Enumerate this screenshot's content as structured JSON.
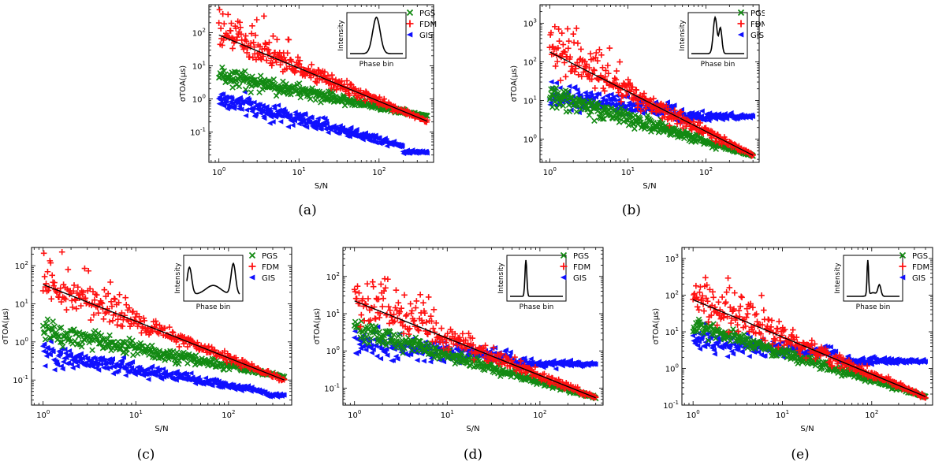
{
  "colors": {
    "PGS": "#138a13",
    "FDM": "#ff1010",
    "GIS": "#1010ff",
    "fit": "#000000"
  },
  "chart_data": [
    {
      "id": "a",
      "caption": "(a)",
      "type": "scatter",
      "xlabel": "S/N",
      "ylabel": "σTOA(μs)",
      "xlim": [
        0.75,
        480
      ],
      "ylim": [
        0.012,
        700
      ],
      "xticks": [
        1,
        10,
        100
      ],
      "yticks": [
        0.1,
        1,
        10,
        100
      ],
      "legend": [
        "PGS",
        "FDM",
        "GIS"
      ],
      "inset": {
        "xlabel": "Phase bin",
        "ylabel": "Intensity",
        "profile": "single"
      },
      "fit_line": {
        "x": [
          1,
          400
        ],
        "y": [
          85,
          0.21
        ]
      },
      "series": [
        {
          "name": "PGS",
          "marker": "x",
          "x_range": [
            1,
            400
          ],
          "y_at_xmin": 5.2,
          "y_at_xmax": 0.3,
          "slope": -0.45,
          "scatter": 0.45,
          "flatten_above": null
        },
        {
          "name": "FDM",
          "marker": "+",
          "x_range": [
            1,
            400
          ],
          "y_at_xmin": 85,
          "y_at_xmax": 0.21,
          "slope": -1.0,
          "scatter": 0.6,
          "flatten_above": null
        },
        {
          "name": "GIS",
          "marker": "tri_left",
          "x_range": [
            1,
            400
          ],
          "y_at_xmin": 1.0,
          "y_at_xmax": 0.025,
          "slope": -0.62,
          "scatter": 0.5,
          "flatten_above": 200
        }
      ]
    },
    {
      "id": "b",
      "caption": "(b)",
      "type": "scatter",
      "xlabel": "S/N",
      "ylabel": "σTOA(μs)",
      "xlim": [
        0.75,
        480
      ],
      "ylim": [
        0.25,
        3000
      ],
      "xticks": [
        1,
        10,
        100
      ],
      "yticks": [
        1,
        10,
        100,
        1000
      ],
      "legend": [
        "PGS",
        "FDM",
        "GIS"
      ],
      "inset": {
        "xlabel": "Phase bin",
        "ylabel": "Intensity",
        "profile": "narrow"
      },
      "fit_line": {
        "x": [
          1,
          400
        ],
        "y": [
          180,
          0.38
        ]
      },
      "series": [
        {
          "name": "PGS",
          "marker": "x",
          "x_range": [
            1,
            400
          ],
          "y_at_xmin": 14,
          "y_at_xmax": 0.38,
          "slope": -0.6,
          "scatter": 0.45,
          "flatten_above": null
        },
        {
          "name": "FDM",
          "marker": "+",
          "x_range": [
            1,
            400
          ],
          "y_at_xmin": 180,
          "y_at_xmax": 0.38,
          "slope": -1.0,
          "scatter": 0.65,
          "flatten_above": null
        },
        {
          "name": "GIS",
          "marker": "tri_left",
          "x_range": [
            1,
            400
          ],
          "y_at_xmin": 12,
          "y_at_xmax": 3.8,
          "slope": -0.3,
          "scatter": 0.5,
          "flatten_above": 40
        }
      ]
    },
    {
      "id": "c",
      "caption": "(c)",
      "type": "scatter",
      "xlabel": "S/N",
      "ylabel": "σTOA(μs)",
      "xlim": [
        0.75,
        480
      ],
      "ylim": [
        0.022,
        300
      ],
      "xticks": [
        1,
        10,
        100
      ],
      "yticks": [
        0.1,
        1,
        10,
        100
      ],
      "legend": [
        "PGS",
        "FDM",
        "GIS"
      ],
      "inset": {
        "xlabel": "Phase bin",
        "ylabel": "Intensity",
        "profile": "broad"
      },
      "fit_line": {
        "x": [
          1,
          400
        ],
        "y": [
          32,
          0.1
        ]
      },
      "series": [
        {
          "name": "PGS",
          "marker": "x",
          "x_range": [
            1,
            400
          ],
          "y_at_xmin": 2.0,
          "y_at_xmax": 0.12,
          "slope": -0.45,
          "scatter": 0.45,
          "flatten_above": null
        },
        {
          "name": "FDM",
          "marker": "+",
          "x_range": [
            1,
            400
          ],
          "y_at_xmin": 32,
          "y_at_xmax": 0.1,
          "slope": -0.97,
          "scatter": 0.6,
          "flatten_above": null
        },
        {
          "name": "GIS",
          "marker": "tri_left",
          "x_range": [
            1,
            400
          ],
          "y_at_xmin": 0.5,
          "y_at_xmax": 0.04,
          "slope": -0.42,
          "scatter": 0.45,
          "flatten_above": 250
        }
      ]
    },
    {
      "id": "d",
      "caption": "(d)",
      "type": "scatter",
      "xlabel": "S/N",
      "ylabel": "σTOA(μs)",
      "xlim": [
        0.75,
        480
      ],
      "ylim": [
        0.035,
        600
      ],
      "xticks": [
        1,
        10,
        100
      ],
      "yticks": [
        0.1,
        1,
        10,
        100
      ],
      "legend": [
        "PGS",
        "FDM",
        "GIS"
      ],
      "inset": {
        "xlabel": "Phase bin",
        "ylabel": "Intensity",
        "profile": "spike"
      },
      "fit_line": {
        "x": [
          1,
          400
        ],
        "y": [
          22,
          0.055
        ]
      },
      "series": [
        {
          "name": "PGS",
          "marker": "x",
          "x_range": [
            1,
            400
          ],
          "y_at_xmin": 4.0,
          "y_at_xmax": 0.055,
          "slope": -0.7,
          "scatter": 0.4,
          "flatten_above": null
        },
        {
          "name": "FDM",
          "marker": "+",
          "x_range": [
            1,
            400
          ],
          "y_at_xmin": 22,
          "y_at_xmax": 0.055,
          "slope": -1.0,
          "scatter": 0.65,
          "flatten_above": null
        },
        {
          "name": "GIS",
          "marker": "tri_left",
          "x_range": [
            1,
            400
          ],
          "y_at_xmin": 1.5,
          "y_at_xmax": 0.45,
          "slope": -0.3,
          "scatter": 0.55,
          "flatten_above": 50
        }
      ]
    },
    {
      "id": "e",
      "caption": "(e)",
      "type": "scatter",
      "xlabel": "S/N",
      "ylabel": "σTOA(μs)",
      "xlim": [
        0.75,
        480
      ],
      "ylim": [
        0.1,
        2000
      ],
      "xticks": [
        1,
        10,
        100
      ],
      "yticks": [
        0.1,
        1,
        10,
        100,
        1000
      ],
      "legend": [
        "PGS",
        "FDM",
        "GIS"
      ],
      "inset": {
        "xlabel": "Phase bin",
        "ylabel": "Intensity",
        "profile": "double"
      },
      "fit_line": {
        "x": [
          1,
          400
        ],
        "y": [
          75,
          0.17
        ]
      },
      "series": [
        {
          "name": "PGS",
          "marker": "x",
          "x_range": [
            1,
            400
          ],
          "y_at_xmin": 15,
          "y_at_xmax": 0.17,
          "slope": -0.55,
          "scatter": 0.35,
          "flatten_above": null
        },
        {
          "name": "FDM",
          "marker": "+",
          "x_range": [
            1,
            400
          ],
          "y_at_xmin": 75,
          "y_at_xmax": 0.17,
          "slope": -1.0,
          "scatter": 0.65,
          "flatten_above": null
        },
        {
          "name": "GIS",
          "marker": "tri_left",
          "x_range": [
            1,
            400
          ],
          "y_at_xmin": 6,
          "y_at_xmax": 1.6,
          "slope": -0.35,
          "scatter": 0.5,
          "flatten_above": 40
        }
      ]
    }
  ]
}
